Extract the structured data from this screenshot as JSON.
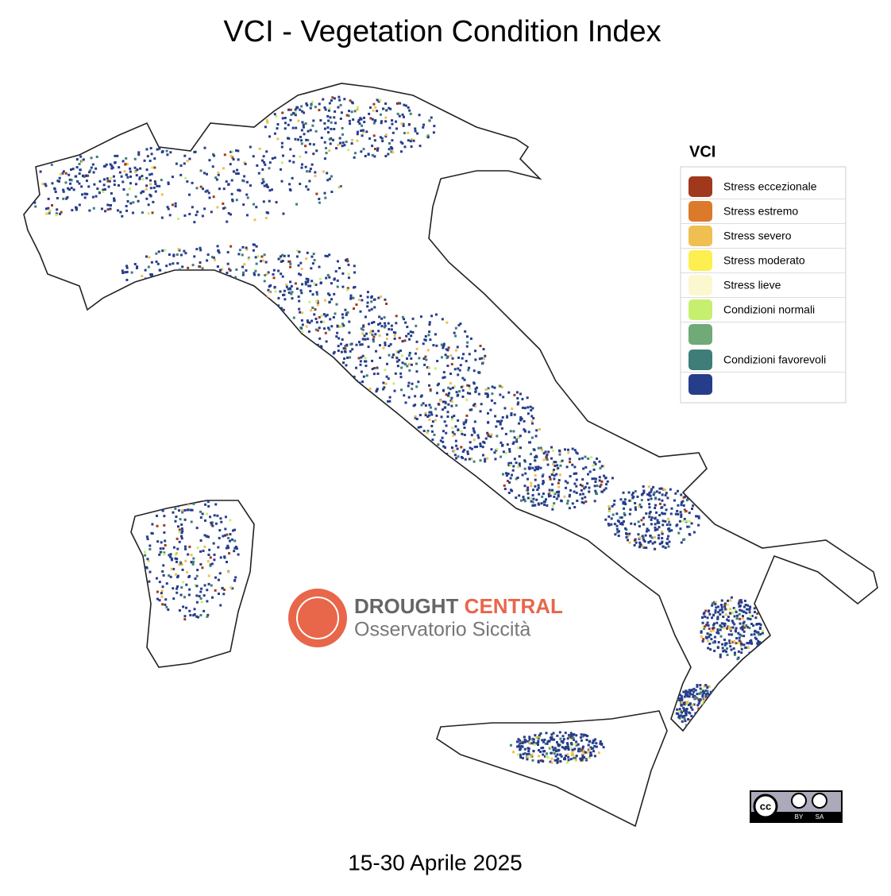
{
  "title": "VCI - Vegetation Condition Index",
  "legend": {
    "title": "VCI",
    "items": [
      {
        "label": "Stress eccezionale",
        "color": "#a0391b"
      },
      {
        "label": "Stress estremo",
        "color": "#dc7a2c"
      },
      {
        "label": "Stress severo",
        "color": "#efbf52"
      },
      {
        "label": "Stress moderato",
        "color": "#fcef4f"
      },
      {
        "label": "Stress lieve",
        "color": "#fbf7cf"
      },
      {
        "label": "Condizioni normali",
        "color": "#c7ef6f"
      },
      {
        "label": null,
        "color": "#6faa78"
      },
      {
        "label": "Condizioni favorevoli",
        "color": "#3f7d78"
      },
      {
        "label": null,
        "color": "#263d8a"
      }
    ]
  },
  "logo": {
    "word1": "DROUGHT",
    "word2": "CENTRAL",
    "subtitle": "Osservatorio Siccità"
  },
  "license": {
    "cc": "cc",
    "by": "BY",
    "sa": "SA"
  },
  "date": "15-30 Aprile 2025"
}
